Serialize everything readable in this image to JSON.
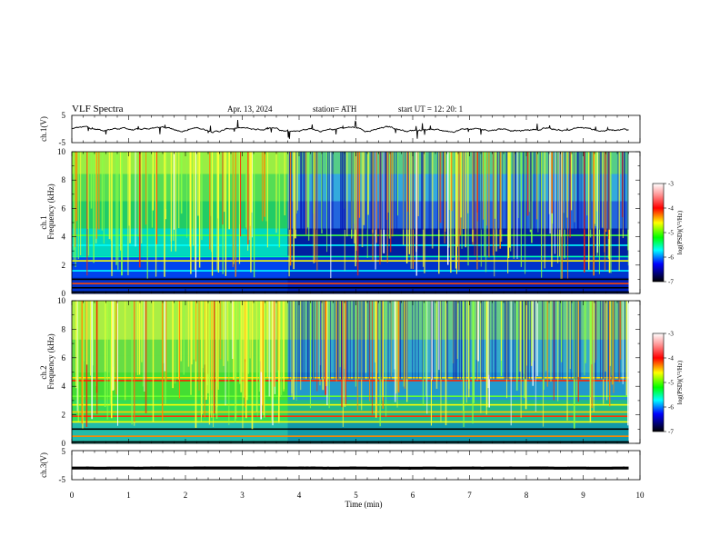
{
  "header": {
    "title": "VLF  Spectra",
    "date": "Apr. 13, 2024",
    "station": "station= ATH",
    "start": "start  UT  =    12: 20: 1"
  },
  "chart_data": [
    {
      "type": "line",
      "name": "ch1-waveform",
      "ylabel": "ch.1(V)",
      "ylim": [
        -5,
        5
      ],
      "yticks": [
        "5",
        "-5"
      ],
      "xlim": [
        0,
        10
      ],
      "baseline_v": 0,
      "trace_color": "#000000"
    },
    {
      "type": "heatmap",
      "name": "ch1-spectrogram",
      "ylabel": "ch.1",
      "ylabel2": "Frequency  (kHz)",
      "ylim": [
        0,
        10
      ],
      "yticks": [
        "0",
        "2",
        "4",
        "6",
        "8",
        "10"
      ],
      "xlim": [
        0,
        10
      ],
      "data_end_min": 9.8,
      "background_shift_min": 3.8,
      "colorbar": {
        "label": "log(PSD)(V²/Hz)",
        "range": [
          -7,
          -3
        ],
        "ticks": [
          "-3",
          "-4",
          "-5",
          "-6",
          "-7"
        ],
        "colors": [
          "#ffffff",
          "#ff0000",
          "#ffff00",
          "#00ff00",
          "#00ffff",
          "#0000ff",
          "#000000"
        ]
      }
    },
    {
      "type": "heatmap",
      "name": "ch2-spectrogram",
      "ylabel": "ch.2",
      "ylabel2": "Frequency  (kHz)",
      "ylim": [
        0,
        10
      ],
      "yticks": [
        "0",
        "2",
        "4",
        "6",
        "8",
        "10"
      ],
      "xlim": [
        0,
        10
      ],
      "data_end_min": 9.8,
      "background_shift_min": 3.8,
      "colorbar": {
        "label": "log(PSD)(V²/Hz)",
        "range": [
          -7,
          -3
        ],
        "ticks": [
          "-3",
          "-4",
          "-5",
          "-6",
          "-7"
        ],
        "colors": [
          "#ffffff",
          "#ff0000",
          "#ffff00",
          "#00ff00",
          "#00ffff",
          "#0000ff",
          "#000000"
        ]
      }
    },
    {
      "type": "line",
      "name": "ch3-waveform",
      "ylabel": "ch.3(V)",
      "ylim": [
        -5,
        5
      ],
      "yticks": [
        "5",
        "-5"
      ],
      "xlim": [
        0,
        10
      ],
      "xlabel": "Time  (min)",
      "xticks": [
        "0",
        "1",
        "2",
        "3",
        "4",
        "5",
        "6",
        "7",
        "8",
        "9",
        "10"
      ],
      "baseline_v": -1,
      "trace_color": "#000000"
    }
  ]
}
